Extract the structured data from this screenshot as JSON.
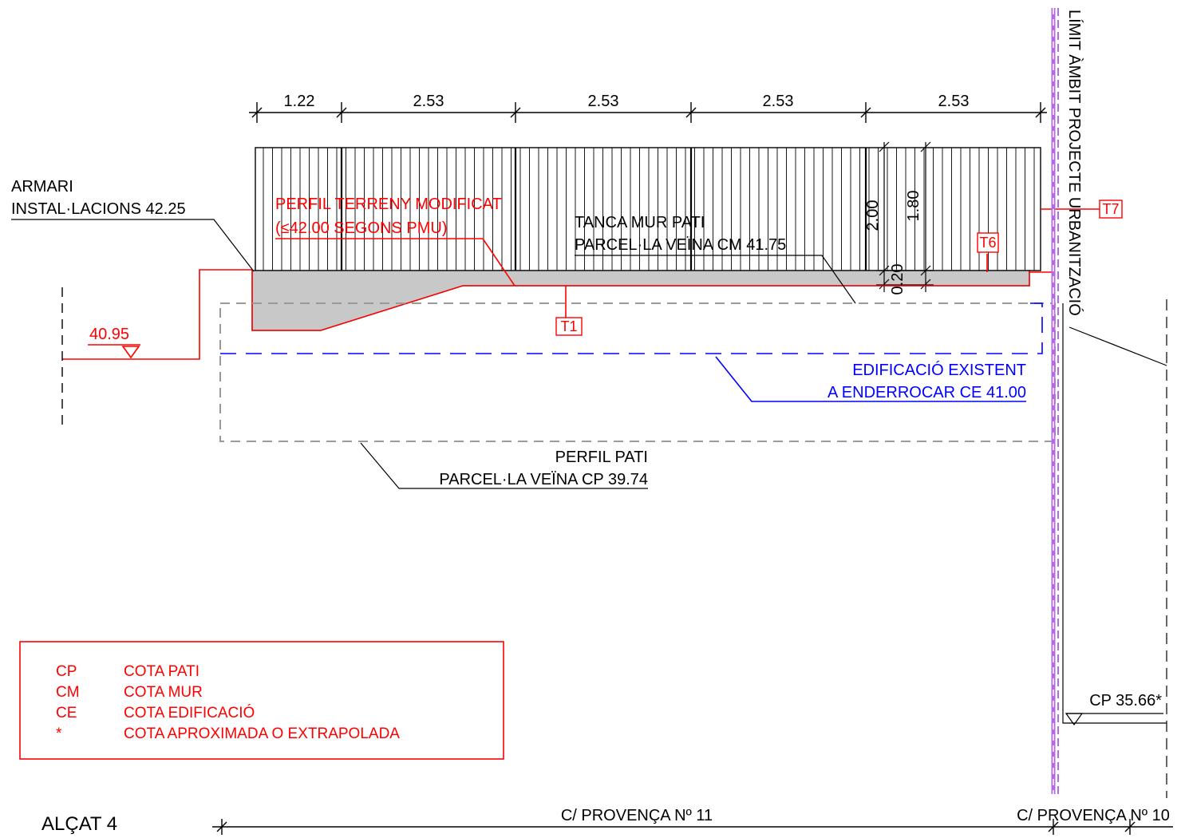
{
  "drawing": {
    "title": "ALÇAT 4",
    "dimensions": [
      "1.22",
      "2.53",
      "2.53",
      "2.53",
      "2.53"
    ],
    "vertical_dimensions": [
      "2.00",
      "1.80",
      "0.20"
    ],
    "labels": {
      "armari_line1": "ARMARI",
      "armari_line2": "INSTAL·LACIONS 42.25",
      "perfil_terreny_line1": "PERFIL TERRENY MODIFICAT",
      "perfil_terreny_line2": "(≤42.00 SEGONS PMU)",
      "tanca_line1": "TANCA MUR PATI",
      "tanca_line2": "PARCEL·LA VEÏNA CM 41.75",
      "level_left": "40.95",
      "edificacio_line1": "EDIFICACIÓ EXISTENT",
      "edificacio_line2": "A ENDERROCAR CE 41.00",
      "perfil_pati_line1": "PERFIL PATI",
      "perfil_pati_line2": "PARCEL·LA VEÏNA CP 39.74",
      "limit": "LÍMIT ÀMBIT PROJECTE URBANITZACIÓ",
      "cp_right": "CP 35.66*",
      "street_1": "C/ PROVENÇA Nº 11",
      "street_2": "C/ PROVENÇA Nº 10"
    },
    "tags": [
      "T1",
      "T6",
      "T7"
    ],
    "legend": [
      {
        "code": "CP",
        "text": "COTA PATI"
      },
      {
        "code": "CM",
        "text": "COTA MUR"
      },
      {
        "code": "CE",
        "text": "COTA EDIFICACIÓ"
      },
      {
        "code": "*",
        "text": "COTA APROXIMADA O EXTRAPOLADA"
      }
    ],
    "colors": {
      "line": "#000000",
      "annotation": "#ff0000",
      "existing_building": "#0000ff",
      "project_limit": "#b36ae2",
      "fill_grey": "#c8c8c8",
      "dashed_grey": "#9a9a9a"
    }
  }
}
